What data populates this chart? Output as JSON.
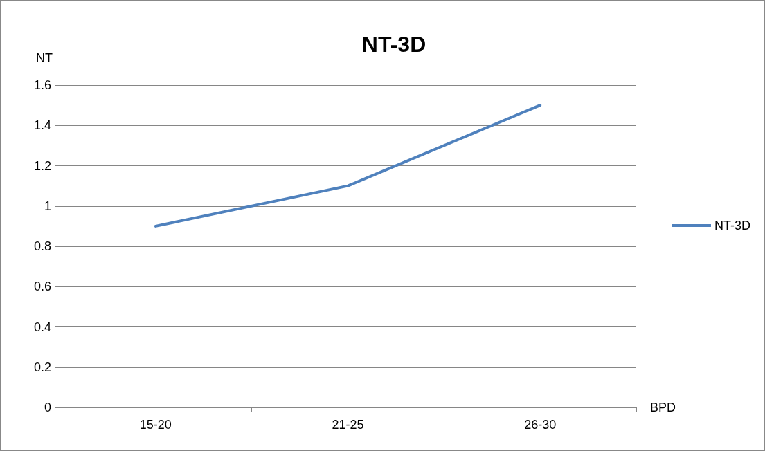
{
  "chart_data": {
    "type": "line",
    "title": "NT-3D",
    "xlabel": "BPD",
    "ylabel": "NT",
    "categories": [
      "15-20",
      "21-25",
      "26-30"
    ],
    "series": [
      {
        "name": "NT-3D",
        "color": "#4f81bd",
        "values": [
          0.9,
          1.1,
          1.5
        ]
      }
    ],
    "ylim": [
      0,
      1.6
    ],
    "yticks": [
      0,
      0.2,
      0.4,
      0.6,
      0.8,
      1,
      1.2,
      1.4,
      1.6
    ],
    "grid": "y",
    "legend": "right",
    "marker": "none",
    "line_style": "solid"
  }
}
